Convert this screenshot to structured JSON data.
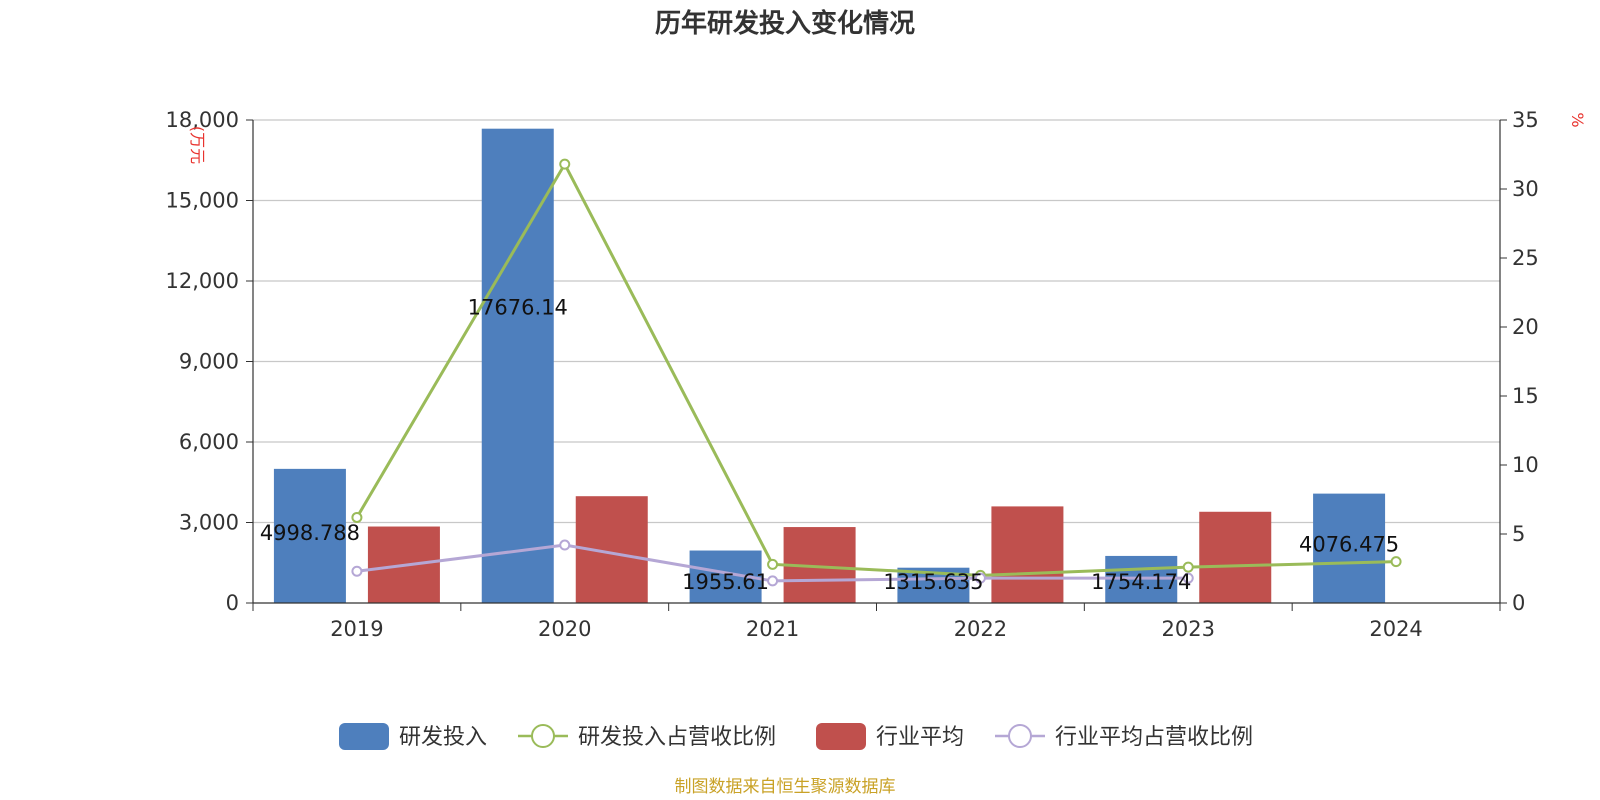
{
  "chart_data": {
    "type": "bar",
    "title": "历年研发投入变化情况",
    "categories": [
      "2019",
      "2020",
      "2021",
      "2022",
      "2023",
      "2024"
    ],
    "y_left": {
      "unit_label": "(万元",
      "ticks": [
        "0",
        "3,000",
        "6,000",
        "9,000",
        "12,000",
        "15,000",
        "18,000"
      ],
      "range": [
        0,
        18000
      ]
    },
    "y_right": {
      "unit_label": "%",
      "ticks": [
        "0",
        "5",
        "10",
        "15",
        "20",
        "25",
        "30",
        "35"
      ],
      "range": [
        0,
        35
      ]
    },
    "series": [
      {
        "name": "研发投入",
        "type": "bar",
        "axis": "left",
        "color": "#4e7fbd",
        "values": [
          4998.788,
          17676.14,
          1955.61,
          1315.635,
          1754.174,
          4076.475
        ],
        "labels": [
          "4998.788",
          "17676.14",
          "1955.61",
          "1315.635",
          "1754.174",
          "4076.475"
        ]
      },
      {
        "name": "研发投入占营收比例",
        "type": "line",
        "axis": "right",
        "color": "#9abb59",
        "values": [
          6.2,
          31.8,
          2.8,
          2.0,
          2.6,
          3.0
        ]
      },
      {
        "name": "行业平均",
        "type": "bar",
        "axis": "left",
        "color": "#c0504d",
        "values": [
          2850,
          3980,
          2830,
          3600,
          3400,
          null
        ]
      },
      {
        "name": "行业平均占营收比例",
        "type": "line",
        "axis": "right",
        "color": "#b5a7d5",
        "values": [
          2.3,
          4.2,
          1.6,
          1.8,
          1.8,
          null
        ]
      }
    ],
    "grid": true,
    "legend_position": "bottom"
  },
  "footer": {
    "source": "制图数据来自恒生聚源数据库"
  }
}
